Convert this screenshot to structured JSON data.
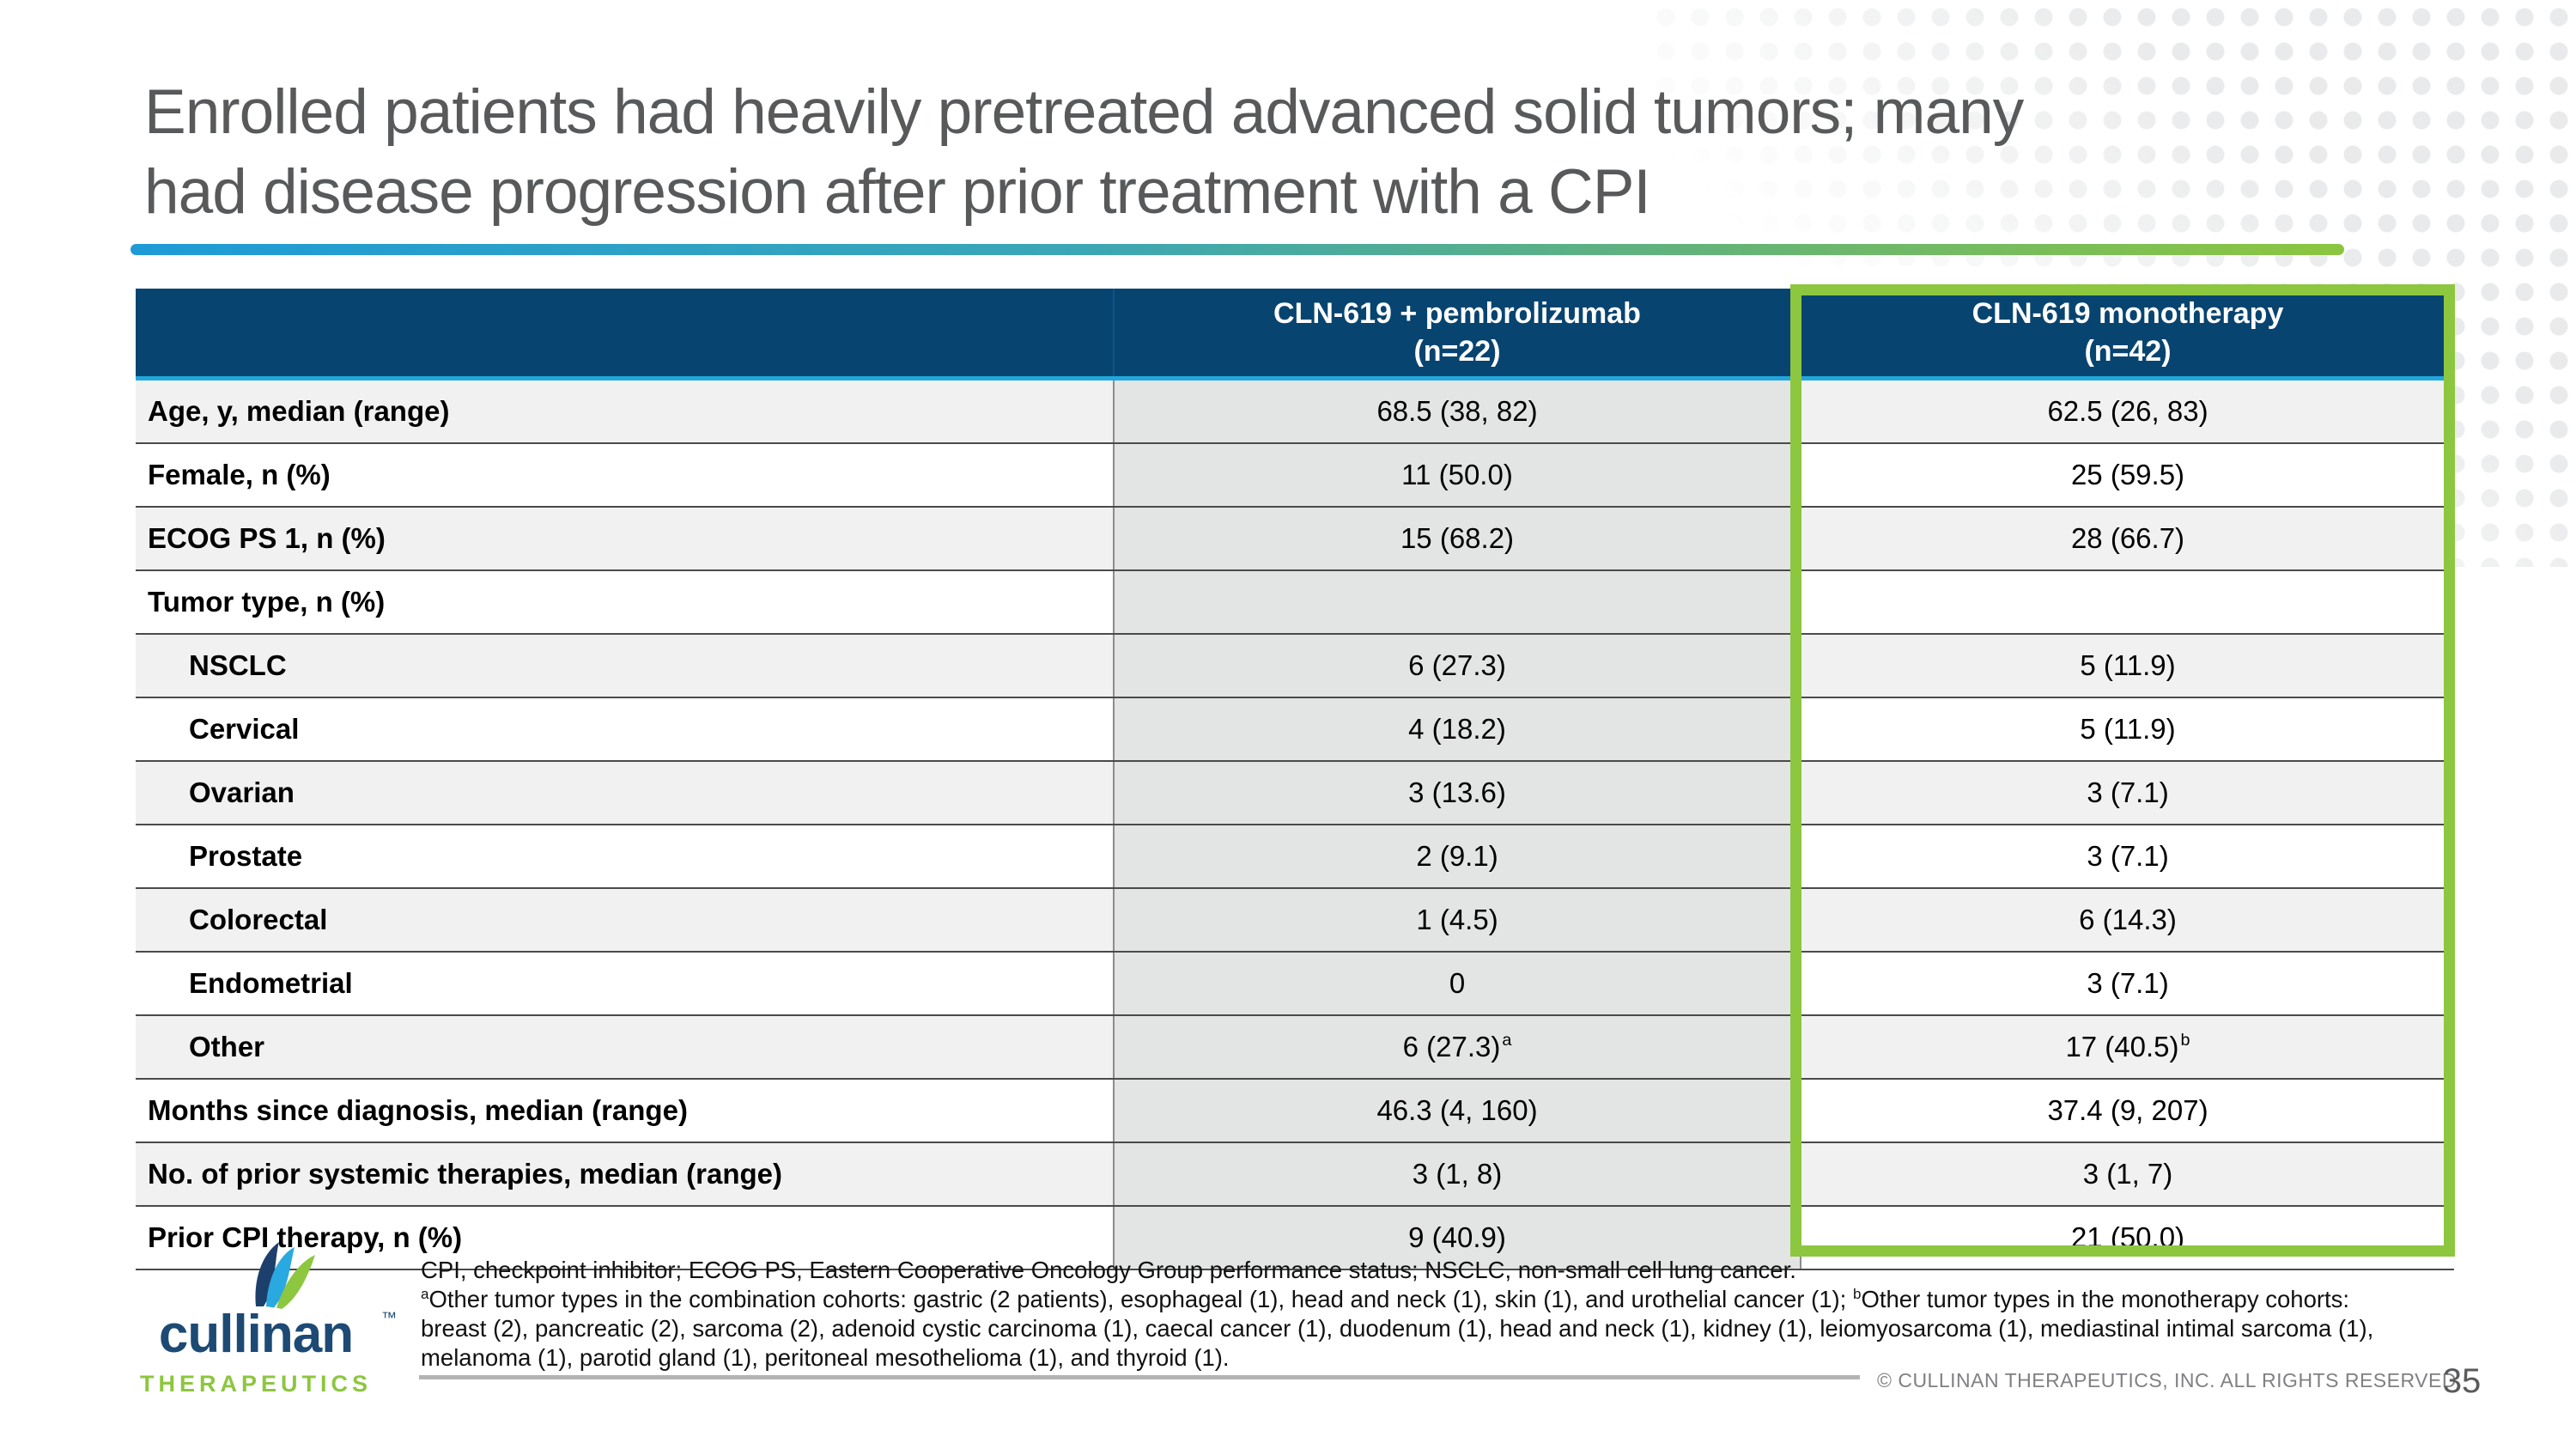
{
  "slide": {
    "title_line1": "Enrolled patients had heavily pretreated advanced solid tumors; many",
    "title_line2": "had disease progression after prior treatment with a CPI",
    "page_number": "35",
    "copyright": "© CULLINAN THERAPEUTICS, INC. ALL RIGHTS RESERVED."
  },
  "logo": {
    "wordmark": "cullinan",
    "trademark": "™",
    "subtext": "THERAPEUTICS"
  },
  "colors": {
    "header_navy": "#084470",
    "accent_cyan": "#21a7dd",
    "highlight_green": "#8dc63f",
    "bar_gradient_start": "#1e9bd7",
    "bar_gradient_end": "#8cc63f",
    "title_gray": "#58595b"
  },
  "table": {
    "columns": [
      {
        "line1": "CLN-619 + pembrolizumab",
        "line2": "(n=22)"
      },
      {
        "line1": "CLN-619 monotherapy",
        "line2": "(n=42)"
      }
    ],
    "rows": [
      {
        "label": "Age, y, median (range)",
        "indent": false,
        "combo": "68.5 (38, 82)",
        "mono": "62.5 (26, 83)"
      },
      {
        "label": "Female, n (%)",
        "indent": false,
        "combo": "11 (50.0)",
        "mono": "25 (59.5)"
      },
      {
        "label": "ECOG PS 1, n (%)",
        "indent": false,
        "combo": "15 (68.2)",
        "mono": "28 (66.7)"
      },
      {
        "label": "Tumor type, n (%)",
        "indent": false,
        "combo": "",
        "mono": ""
      },
      {
        "label": "NSCLC",
        "indent": true,
        "combo": "6 (27.3)",
        "mono": "5 (11.9)"
      },
      {
        "label": "Cervical",
        "indent": true,
        "combo": "4 (18.2)",
        "mono": "5 (11.9)"
      },
      {
        "label": "Ovarian",
        "indent": true,
        "combo": "3 (13.6)",
        "mono": "3 (7.1)"
      },
      {
        "label": "Prostate",
        "indent": true,
        "combo": "2 (9.1)",
        "mono": "3 (7.1)"
      },
      {
        "label": "Colorectal",
        "indent": true,
        "combo": "1 (4.5)",
        "mono": "6 (14.3)"
      },
      {
        "label": "Endometrial",
        "indent": true,
        "combo": "0",
        "mono": "3 (7.1)"
      },
      {
        "label": "Other",
        "indent": true,
        "combo": "6 (27.3)",
        "combo_sup": "a",
        "mono": "17 (40.5)",
        "mono_sup": "b"
      },
      {
        "label": "Months since diagnosis, median (range)",
        "indent": false,
        "combo": "46.3 (4, 160)",
        "mono": "37.4 (9, 207)"
      },
      {
        "label": "No. of prior systemic therapies, median (range)",
        "indent": false,
        "combo": "3 (1, 8)",
        "mono": "3 (1, 7)"
      },
      {
        "label": "Prior CPI therapy, n (%)",
        "indent": false,
        "combo": "9 (40.9)",
        "mono": "21 (50.0)"
      }
    ]
  },
  "footnotes": {
    "line1": "CPI, checkpoint inhibitor; ECOG PS, Eastern Cooperative Oncology Group performance status; NSCLC, non-small cell lung cancer.",
    "line2_segments": [
      {
        "sup": "a"
      },
      {
        "text": "Other tumor types in the combination cohorts: gastric (2 patients), esophageal (1), head and neck (1), skin (1), and urothelial cancer (1); "
      },
      {
        "sup": "b"
      },
      {
        "text": "Other tumor types in the monotherapy cohorts: breast (2), pancreatic (2), sarcoma (2), adenoid cystic carcinoma (1), caecal cancer (1), duodenum (1), head and neck (1), kidney (1), leiomyosarcoma (1), mediastinal intimal sarcoma (1), melanoma (1), parotid gland (1), peritoneal mesothelioma (1), and thyroid (1)."
      }
    ]
  }
}
